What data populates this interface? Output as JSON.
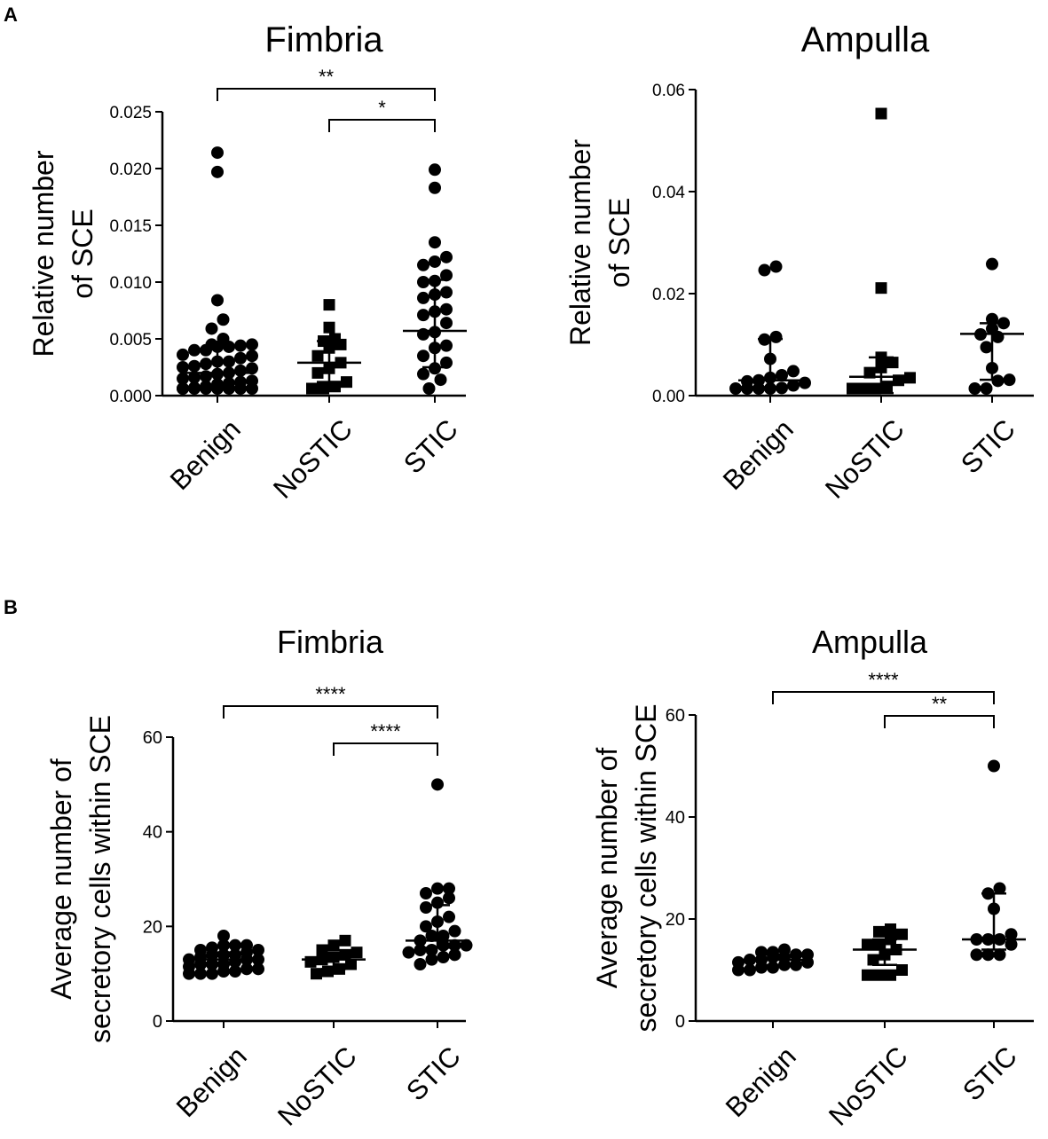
{
  "panels": {
    "a": "A",
    "b": "B"
  },
  "chart_data": [
    {
      "type": "scatter",
      "panel": "A",
      "title": "Fimbria",
      "ylabel": [
        "Relative number",
        "of SCE"
      ],
      "ylim": [
        0,
        0.025
      ],
      "yticks": [
        0,
        0.005,
        0.01,
        0.015,
        0.02,
        0.025
      ],
      "ytick_labels": [
        "0.000",
        "0.005",
        "0.010",
        "0.015",
        "0.020",
        "0.025"
      ],
      "categories": [
        "Benign",
        "NoSTIC",
        "STIC"
      ],
      "series": [
        {
          "name": "Benign",
          "marker": "circle",
          "median": 0.002,
          "q1": 0.0008,
          "q3": 0.0042,
          "values": [
            0.0214,
            0.0197,
            0.0084,
            0.0067,
            0.0059,
            0.005,
            0.0045,
            0.0045,
            0.0044,
            0.0043,
            0.0043,
            0.004,
            0.004,
            0.0036,
            0.0035,
            0.0033,
            0.003,
            0.003,
            0.0028,
            0.0026,
            0.0025,
            0.0024,
            0.0022,
            0.002,
            0.0019,
            0.0017,
            0.0016,
            0.0015,
            0.0013,
            0.0012,
            0.0011,
            0.001,
            0.0008,
            0.0007,
            0.0006,
            0.0005,
            0.0004,
            0.0003,
            0.0002,
            0.0001,
            0.0,
            0.0
          ]
        },
        {
          "name": "NoSTIC",
          "marker": "square",
          "median": 0.0029,
          "q1": 0.0012,
          "q3": 0.0048,
          "values": [
            0.008,
            0.006,
            0.005,
            0.0048,
            0.0045,
            0.0042,
            0.0035,
            0.0029,
            0.0024,
            0.002,
            0.0012,
            0.0008,
            0.0003,
            0.0002
          ]
        },
        {
          "name": "STIC",
          "marker": "circle",
          "median": 0.0057,
          "q1": 0.0025,
          "q3": 0.0102,
          "values": [
            0.0199,
            0.0183,
            0.0135,
            0.0122,
            0.0118,
            0.0115,
            0.0106,
            0.0101,
            0.01,
            0.0091,
            0.0089,
            0.0086,
            0.0076,
            0.0074,
            0.0071,
            0.0064,
            0.0056,
            0.0054,
            0.0044,
            0.0042,
            0.0035,
            0.0029,
            0.0024,
            0.0019,
            0.0014,
            0.0004
          ]
        }
      ],
      "significance": [
        {
          "from": "Benign",
          "to": "STIC",
          "label": "**"
        },
        {
          "from": "NoSTIC",
          "to": "STIC",
          "label": "*"
        }
      ]
    },
    {
      "type": "scatter",
      "panel": "A",
      "title": "Ampulla",
      "ylabel": [
        "Relative number",
        "of SCE"
      ],
      "ylim": [
        0,
        0.06
      ],
      "yticks": [
        0,
        0.02,
        0.04,
        0.06
      ],
      "ytick_labels": [
        "0.00",
        "0.02",
        "0.04",
        "0.06"
      ],
      "categories": [
        "Benign",
        "NoSTIC",
        "STIC"
      ],
      "series": [
        {
          "name": "Benign",
          "marker": "circle",
          "median": 0.003,
          "q1": 0.0012,
          "q3": 0.0111,
          "values": [
            0.0253,
            0.0246,
            0.0115,
            0.011,
            0.0072,
            0.0048,
            0.004,
            0.0035,
            0.003,
            0.0028,
            0.0025,
            0.002,
            0.0015,
            0.001,
            0.0007,
            0.0005,
            0.0003
          ]
        },
        {
          "name": "NoSTIC",
          "marker": "square",
          "median": 0.0037,
          "q1": 0.0005,
          "q3": 0.0075,
          "values": [
            0.0553,
            0.0211,
            0.0075,
            0.0065,
            0.0055,
            0.0045,
            0.0035,
            0.003,
            0.0018,
            0.001,
            0.0006,
            0.0003
          ]
        },
        {
          "name": "STIC",
          "marker": "circle",
          "median": 0.0121,
          "q1": 0.0031,
          "q3": 0.0142,
          "values": [
            0.0258,
            0.015,
            0.0142,
            0.0131,
            0.012,
            0.0115,
            0.0095,
            0.0054,
            0.0031,
            0.0029,
            0.0007,
            0.0005
          ]
        }
      ],
      "significance": []
    },
    {
      "type": "scatter",
      "panel": "B",
      "title": "Fimbria",
      "ylabel": [
        "Average number of",
        "secretory cells within SCE"
      ],
      "ylim": [
        0,
        60
      ],
      "yticks": [
        0,
        20,
        40,
        60
      ],
      "ytick_labels": [
        "0",
        "20",
        "40",
        "60"
      ],
      "categories": [
        "Benign",
        "NoSTIC",
        "STIC"
      ],
      "series": [
        {
          "name": "Benign",
          "marker": "circle",
          "median": 13,
          "q1": 12,
          "q3": 14.5,
          "values": [
            18,
            16,
            16,
            16,
            15.5,
            15,
            15,
            14.5,
            14,
            14,
            14,
            13.5,
            13,
            13,
            13,
            12.5,
            12,
            12,
            12,
            11.5,
            11,
            11,
            10.5,
            10.5,
            10,
            10,
            10
          ]
        },
        {
          "name": "NoSTIC",
          "marker": "square",
          "median": 13,
          "q1": 11,
          "q3": 14.5,
          "values": [
            17,
            16,
            15,
            14.5,
            14,
            13.5,
            13,
            12.5,
            12,
            11,
            10.5,
            10
          ]
        },
        {
          "name": "STIC",
          "marker": "circle",
          "median": 17,
          "q1": 15.5,
          "q3": 24.5,
          "values": [
            50,
            28,
            28,
            27,
            26,
            25,
            24,
            22,
            21,
            20,
            19,
            18,
            18,
            17,
            16,
            16,
            16,
            15,
            15,
            14.5,
            14,
            13.5,
            13,
            12
          ]
        }
      ],
      "significance": [
        {
          "from": "Benign",
          "to": "STIC",
          "label": "****"
        },
        {
          "from": "NoSTIC",
          "to": "STIC",
          "label": "****"
        }
      ]
    },
    {
      "type": "scatter",
      "panel": "B",
      "title": "Ampulla",
      "ylabel": [
        "Average number of",
        "secretory cells within SCE"
      ],
      "ylim": [
        0,
        60
      ],
      "yticks": [
        0,
        20,
        40,
        60
      ],
      "ytick_labels": [
        "0",
        "20",
        "40",
        "60"
      ],
      "categories": [
        "Benign",
        "NoSTIC",
        "STIC"
      ],
      "series": [
        {
          "name": "Benign",
          "marker": "circle",
          "median": 12,
          "q1": 11,
          "q3": 13,
          "values": [
            14,
            13.5,
            13.5,
            13,
            13,
            12.5,
            12.5,
            12,
            12,
            11.5,
            11.5,
            11,
            11,
            10.5,
            10.5,
            10,
            10
          ]
        },
        {
          "name": "NoSTIC",
          "marker": "square",
          "median": 14,
          "q1": 11,
          "q3": 16,
          "values": [
            18,
            17.5,
            17,
            16,
            15,
            15,
            14,
            13,
            12,
            10,
            9,
            9,
            9
          ]
        },
        {
          "name": "STIC",
          "marker": "circle",
          "median": 16,
          "q1": 14,
          "q3": 25,
          "values": [
            50,
            26,
            25,
            22,
            17,
            16,
            16,
            16,
            15,
            13,
            13,
            13
          ]
        }
      ],
      "significance": [
        {
          "from": "Benign",
          "to": "STIC",
          "label": "****"
        },
        {
          "from": "NoSTIC",
          "to": "STIC",
          "label": "**"
        }
      ]
    }
  ]
}
